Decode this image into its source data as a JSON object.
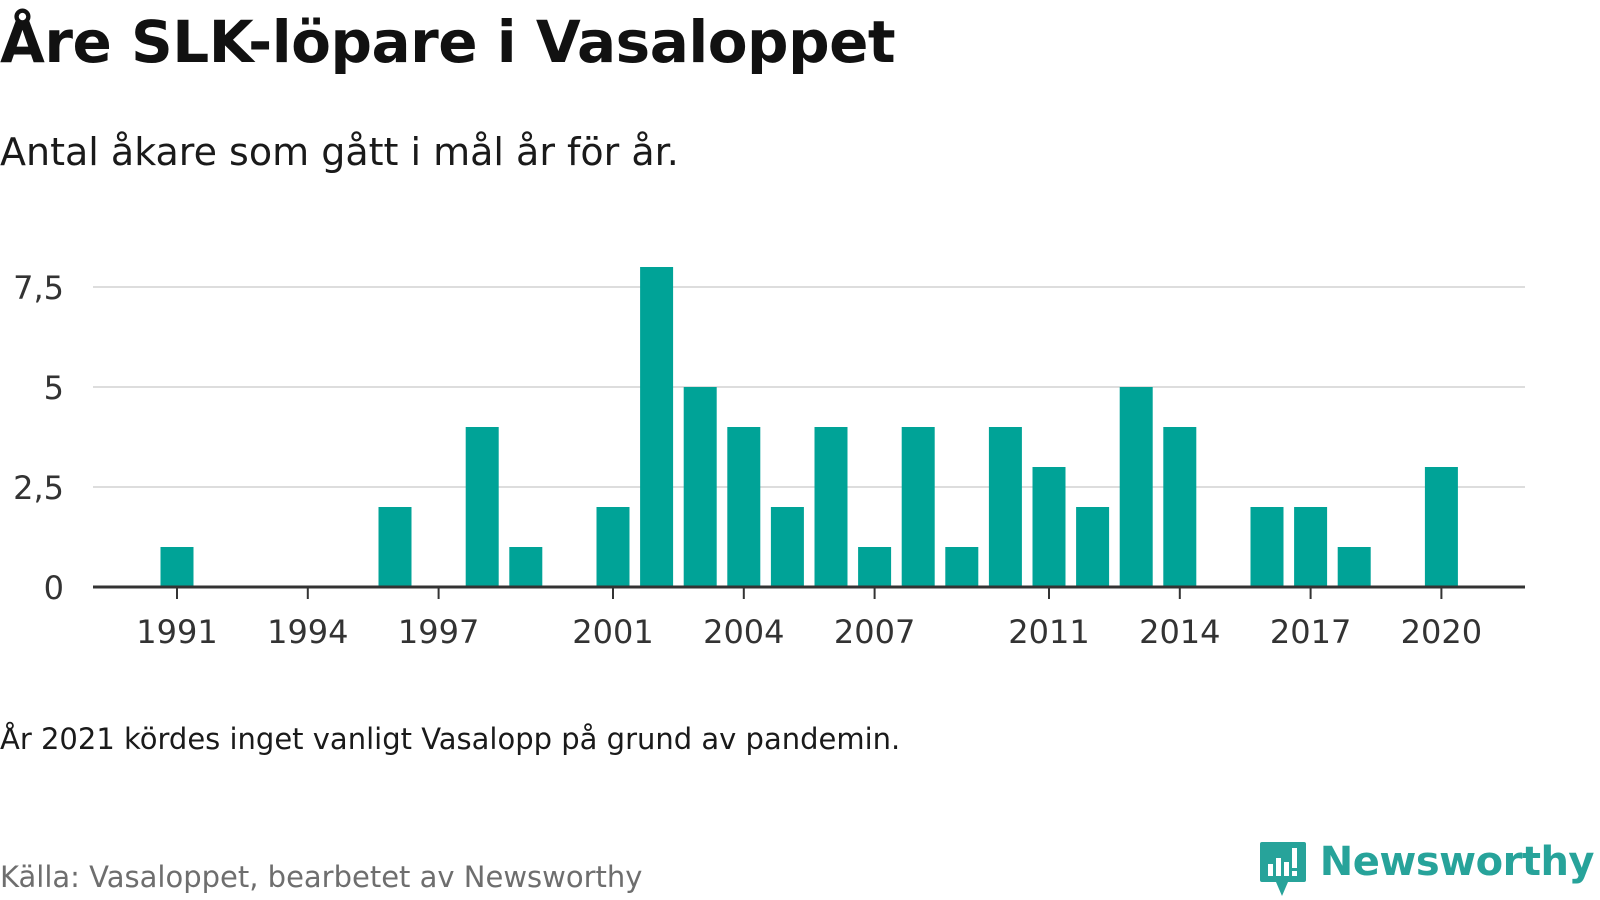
{
  "title": "Åre SLK-löpare i Vasaloppet",
  "subtitle": "Antal åkare som gått i mål år för år.",
  "note": "År 2021 kördes inget vanligt Vasalopp på grund av pandemin.",
  "source": "Källa: Vasaloppet, bearbetet av Newsworthy",
  "brand": {
    "name": "Newsworthy",
    "icon": "newsworthy-logo-icon",
    "color": "#27a39a"
  },
  "chart_data": {
    "type": "bar",
    "x": [
      1991,
      1992,
      1993,
      1994,
      1995,
      1996,
      1997,
      1998,
      1999,
      2000,
      2001,
      2002,
      2003,
      2004,
      2005,
      2006,
      2007,
      2008,
      2009,
      2010,
      2011,
      2012,
      2013,
      2014,
      2015,
      2016,
      2017,
      2018,
      2019,
      2020
    ],
    "values": [
      1,
      0,
      0,
      0,
      0,
      2,
      0,
      4,
      1,
      0,
      2,
      8,
      5,
      4,
      2,
      4,
      1,
      4,
      1,
      4,
      3,
      2,
      5,
      4,
      0,
      2,
      2,
      1,
      0,
      3
    ],
    "x_ticks": [
      "1991",
      "1994",
      "1997",
      "2001",
      "2004",
      "2007",
      "2011",
      "2014",
      "2017",
      "2020"
    ],
    "y_ticks": [
      "0",
      "2,5",
      "5",
      "7,5"
    ],
    "ylim": [
      0,
      8
    ],
    "bar_color": "#00a397",
    "grid": true
  }
}
